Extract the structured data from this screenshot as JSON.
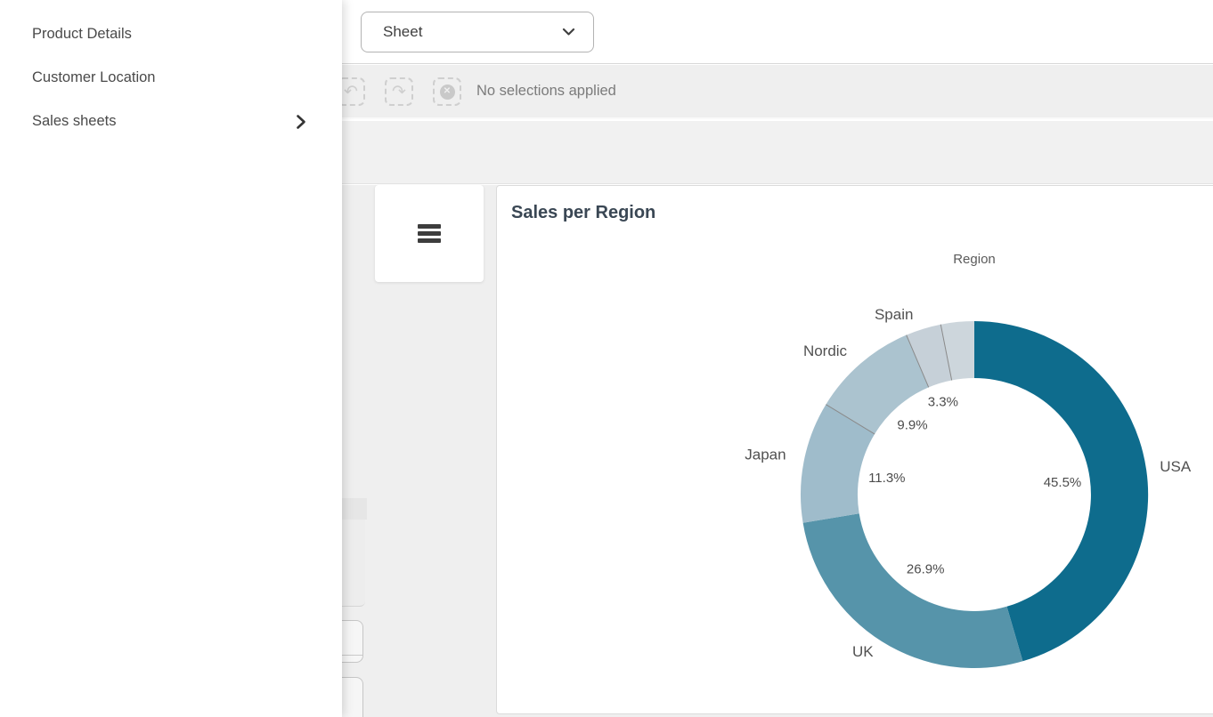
{
  "panel": {
    "items": [
      {
        "label": "Product Details",
        "has_submenu": false
      },
      {
        "label": "Customer Location",
        "has_submenu": false
      },
      {
        "label": "Sales sheets",
        "has_submenu": true
      }
    ]
  },
  "topbar": {
    "sheet_selector_label": "Sheet"
  },
  "selections_bar": {
    "status": "No selections applied",
    "icons": [
      {
        "name": "undo-selection",
        "glyph": "↶"
      },
      {
        "name": "redo-selection",
        "glyph": "↷"
      },
      {
        "name": "clear-selections",
        "glyph": "✕"
      }
    ]
  },
  "chart_card": {
    "title": "Sales per Region"
  },
  "chart_data": {
    "type": "pie",
    "variant": "donut",
    "title": "Sales per Region",
    "legend_title": "Region",
    "legend_position": "top",
    "categories": [
      "USA",
      "UK",
      "Japan",
      "Nordic",
      "Spain",
      ""
    ],
    "values": [
      45.5,
      26.9,
      11.3,
      9.9,
      3.3,
      3.1
    ],
    "unit": "percent",
    "slice_labels": [
      "45.5%",
      "26.9%",
      "11.3%",
      "9.9%",
      "3.3%",
      ""
    ],
    "colors": [
      "#0e6c8d",
      "#5694aa",
      "#9fbccb",
      "#abc3cf",
      "#c6d0d8",
      "#cdd6dc"
    ],
    "divider_color": "#8a8a8a",
    "start_angle": 0,
    "direction": "clockwise",
    "inner_radius_ratio": 0.67
  }
}
